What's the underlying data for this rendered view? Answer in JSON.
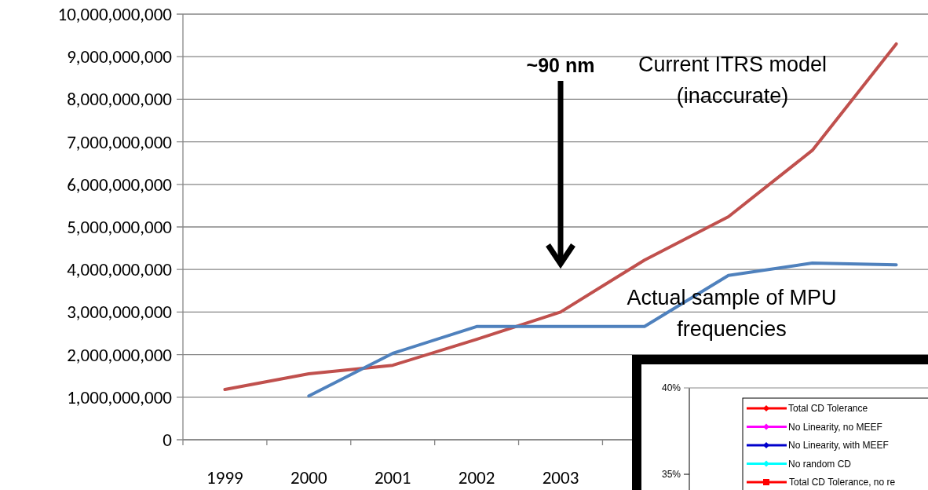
{
  "chart_data": [
    {
      "type": "line",
      "categories": [
        "1999",
        "2000",
        "2001",
        "2002",
        "2003",
        null,
        null,
        null,
        null
      ],
      "series": [
        {
          "color": "#c0504d",
          "values": [
            1180000000,
            1550000000,
            1750000000,
            2360000000,
            3000000000,
            4220000000,
            5240000000,
            6800000000,
            9300000000
          ]
        },
        {
          "color": "#4f81bd",
          "values": [
            null,
            1030000000,
            2030000000,
            2660000000,
            2660000000,
            2660000000,
            3860000000,
            4150000000,
            4110000000
          ]
        }
      ],
      "ylim": [
        0,
        10000000000
      ],
      "yticks": [
        0,
        {
          "value": 1000000000,
          "label": "1,000,000,000"
        },
        {
          "value": 2000000000,
          "label": "2,000,000,000"
        },
        {
          "value": 3000000000,
          "label": "3,000,000,000"
        },
        {
          "value": 4000000000,
          "label": "4,000,000,000"
        },
        {
          "value": 5000000000,
          "label": "5,000,000,000"
        },
        {
          "value": 6000000000,
          "label": "6,000,000,000"
        },
        {
          "value": 7000000000,
          "label": "7,000,000,000"
        },
        {
          "value": 8000000000,
          "label": "8,000,000,000"
        },
        {
          "value": 9000000000,
          "label": "9,000,000,000"
        },
        {
          "value": 10000000000,
          "label": "10,000,000,000"
        }
      ],
      "grid": "y",
      "annotations": [
        "~90 nm",
        "Current ITRS model (inaccurate)",
        "Actual sample of MPU frequencies"
      ]
    },
    {
      "type": "other",
      "annotations": [
        "40%",
        "35%",
        "Total CD Tolerance",
        "No Linearity, no MEEF",
        "No Linearity, with MEEF",
        "No random CD",
        "Total CD Tolerance, no re"
      ],
      "colors": [
        "#ff0000",
        "#ff00ff",
        "#0000cc",
        "#00ffff",
        "#ff0000"
      ]
    }
  ]
}
